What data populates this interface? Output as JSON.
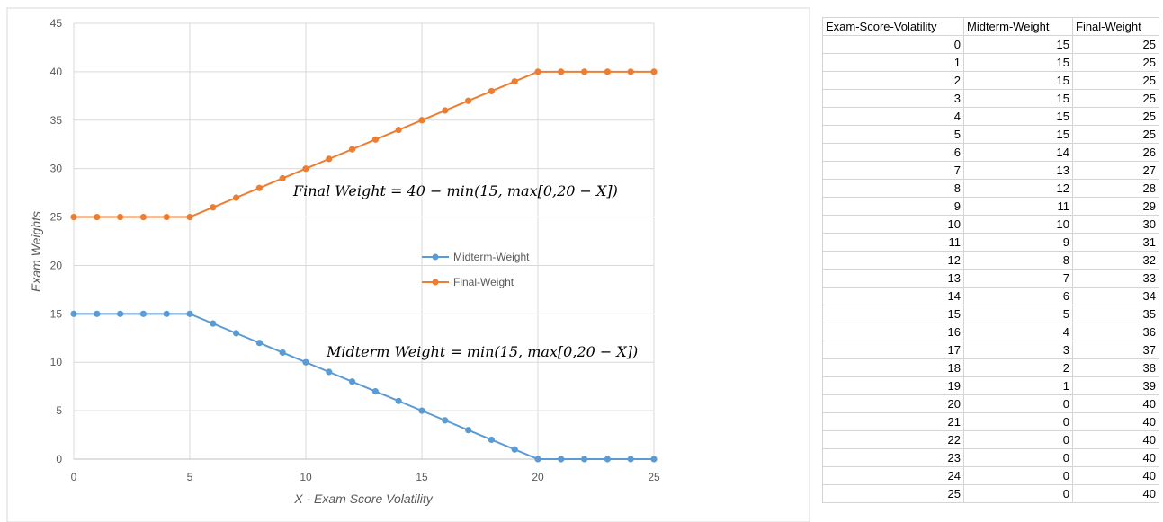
{
  "chart_data": {
    "type": "line",
    "x": [
      0,
      1,
      2,
      3,
      4,
      5,
      6,
      7,
      8,
      9,
      10,
      11,
      12,
      13,
      14,
      15,
      16,
      17,
      18,
      19,
      20,
      21,
      22,
      23,
      24,
      25
    ],
    "series": [
      {
        "name": "Midterm-Weight",
        "color": "#5b9bd5",
        "values": [
          15,
          15,
          15,
          15,
          15,
          15,
          14,
          13,
          12,
          11,
          10,
          9,
          8,
          7,
          6,
          5,
          4,
          3,
          2,
          1,
          0,
          0,
          0,
          0,
          0,
          0
        ]
      },
      {
        "name": "Final-Weight",
        "color": "#ed7d31",
        "values": [
          25,
          25,
          25,
          25,
          25,
          25,
          26,
          27,
          28,
          29,
          30,
          31,
          32,
          33,
          34,
          35,
          36,
          37,
          38,
          39,
          40,
          40,
          40,
          40,
          40,
          40
        ]
      }
    ],
    "xlabel": "X - Exam Score Volatility",
    "ylabel": "Exam Weights",
    "xlim": [
      0,
      25
    ],
    "ylim": [
      0,
      45
    ],
    "xticks": [
      0,
      5,
      10,
      15,
      20,
      25
    ],
    "yticks": [
      0,
      5,
      10,
      15,
      20,
      25,
      30,
      35,
      40,
      45
    ],
    "grid": true,
    "legend_position": "center-right",
    "annotations": [
      {
        "text": "Final Weight = 40 − min(15, max[0,20 − X])",
        "x": 9.5,
        "y": 28
      },
      {
        "text": "Midterm Weight = min(15, max[0,20 − X])",
        "x": 10.9,
        "y": 11
      }
    ]
  },
  "table": {
    "headers": [
      "Exam-Score-Volatility",
      "Midterm-Weight",
      "Final-Weight"
    ]
  }
}
